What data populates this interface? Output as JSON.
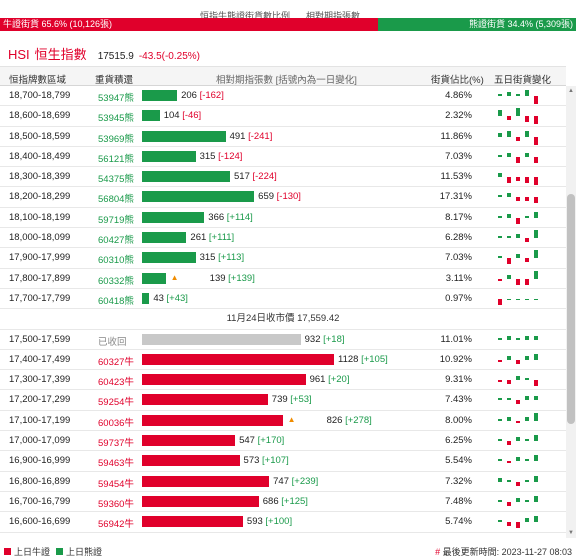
{
  "top_legend": {
    "left_title": "恒指牛熊證街貨數比例",
    "right_title": "相對期指張數"
  },
  "ratio": {
    "bull_label": "牛證街貨 65.6% (10,126張)",
    "bear_label": "熊證街貨 34.4% (5,309張)",
    "bull_fraction": 0.656
  },
  "index": {
    "code": "HSI",
    "name": "恒生指數",
    "price": "17515.9",
    "change": "-43.5(-0.25%)"
  },
  "columns": {
    "range": "恒指牌數區域",
    "count": "重貨積還",
    "bar": "相對期指張數 [括號內為一日變化]",
    "pct": "街貨佔比(%)",
    "five": "五日街貨變化"
  },
  "colors": {
    "bull": "#e0002b",
    "bear": "#1a9a4a",
    "grey": "#c8c8c8"
  },
  "bar_scale_max": 1128,
  "bear_rows": [
    {
      "range": "18,700-18,799",
      "count": "53947熊",
      "value": 206,
      "delta": "[-162]",
      "neg": true,
      "pct": "4.86%",
      "spark": [
        1,
        2,
        1,
        3,
        -4
      ]
    },
    {
      "range": "18,600-18,699",
      "count": "53945熊",
      "value": 104,
      "delta": "[-46]",
      "neg": true,
      "pct": "2.32%",
      "spark": [
        3,
        -2,
        4,
        -3,
        -4
      ]
    },
    {
      "range": "18,500-18,599",
      "count": "53969熊",
      "value": 491,
      "delta": "[-241]",
      "neg": true,
      "pct": "11.86%",
      "spark": [
        2,
        3,
        -2,
        3,
        -4
      ]
    },
    {
      "range": "18,400-18,499",
      "count": "56121熊",
      "value": 315,
      "delta": "[-124]",
      "neg": true,
      "pct": "7.03%",
      "spark": [
        1,
        2,
        -3,
        2,
        -3
      ]
    },
    {
      "range": "18,300-18,399",
      "count": "54375熊",
      "value": 517,
      "delta": "[-224]",
      "neg": true,
      "pct": "11.53%",
      "spark": [
        2,
        -3,
        -2,
        -3,
        -4
      ]
    },
    {
      "range": "18,200-18,299",
      "count": "56804熊",
      "value": 659,
      "delta": "[-130]",
      "neg": true,
      "pct": "17.31%",
      "spark": [
        1,
        2,
        -2,
        -2,
        -3
      ]
    },
    {
      "range": "18,100-18,199",
      "count": "59719熊",
      "value": 366,
      "delta": "[+114]",
      "neg": false,
      "pct": "8.17%",
      "spark": [
        1,
        2,
        -3,
        1,
        3
      ]
    },
    {
      "range": "18,000-18,099",
      "count": "60427熊",
      "value": 261,
      "delta": "[+111]",
      "neg": false,
      "pct": "6.28%",
      "spark": [
        1,
        1,
        2,
        -2,
        4
      ]
    },
    {
      "range": "17,900-17,999",
      "count": "60310熊",
      "value": 315,
      "delta": "[+113]",
      "neg": false,
      "pct": "7.03%",
      "spark": [
        1,
        -3,
        2,
        -2,
        4
      ]
    },
    {
      "range": "17,800-17,899",
      "count": "60332熊",
      "value": 139,
      "delta": "[+139]",
      "neg": false,
      "pct": "3.11%",
      "spark": [
        -1,
        2,
        -3,
        -3,
        4
      ],
      "warn": true
    },
    {
      "range": "17,700-17,799",
      "count": "60418熊",
      "value": 43,
      "delta": "[+43]",
      "neg": false,
      "pct": "0.97%",
      "spark": [
        -3,
        0,
        0,
        0,
        0
      ]
    }
  ],
  "separator": "11月24日收市價 17,559.42",
  "grey_row": {
    "range": "17,500-17,599",
    "count": "已收回",
    "value": 932,
    "delta": "[+18]",
    "neg": false,
    "pct": "11.01%",
    "spark": [
      1,
      2,
      1,
      2,
      2
    ]
  },
  "bull_rows": [
    {
      "range": "17,400-17,499",
      "count": "60327牛",
      "value": 1128,
      "delta": "[+105]",
      "neg": false,
      "pct": "10.92%",
      "spark": [
        -1,
        2,
        -2,
        2,
        3
      ]
    },
    {
      "range": "17,300-17,399",
      "count": "60423牛",
      "value": 961,
      "delta": "[+20]",
      "neg": false,
      "pct": "9.31%",
      "spark": [
        -1,
        -2,
        2,
        1,
        -3
      ]
    },
    {
      "range": "17,200-17,299",
      "count": "59254牛",
      "value": 739,
      "delta": "[+53]",
      "neg": false,
      "pct": "7.43%",
      "spark": [
        1,
        1,
        -2,
        2,
        2
      ]
    },
    {
      "range": "17,100-17,199",
      "count": "60036牛",
      "value": 826,
      "delta": "[+278]",
      "neg": false,
      "pct": "8.00%",
      "spark": [
        1,
        2,
        -1,
        2,
        4
      ],
      "warn": true
    },
    {
      "range": "17,000-17,099",
      "count": "59737牛",
      "value": 547,
      "delta": "[+170]",
      "neg": false,
      "pct": "6.25%",
      "spark": [
        1,
        -2,
        2,
        1,
        3
      ]
    },
    {
      "range": "16,900-16,999",
      "count": "59463牛",
      "value": 573,
      "delta": "[+107]",
      "neg": false,
      "pct": "5.54%",
      "spark": [
        1,
        -1,
        2,
        1,
        3
      ]
    },
    {
      "range": "16,800-16,899",
      "count": "59454牛",
      "value": 747,
      "delta": "[+239]",
      "neg": false,
      "pct": "7.32%",
      "spark": [
        2,
        1,
        -2,
        1,
        3
      ]
    },
    {
      "range": "16,700-16,799",
      "count": "59360牛",
      "value": 686,
      "delta": "[+125]",
      "neg": false,
      "pct": "7.48%",
      "spark": [
        1,
        -2,
        2,
        1,
        3
      ]
    },
    {
      "range": "16,600-16,699",
      "count": "56942牛",
      "value": 593,
      "delta": "[+100]",
      "neg": false,
      "pct": "5.74%",
      "spark": [
        1,
        -2,
        -3,
        2,
        3
      ]
    }
  ],
  "footer": {
    "bull_legend": "上日牛證",
    "bear_legend": "上日熊證",
    "hash": "#",
    "update": "最後更新時間: 2023-11-27 08:03"
  }
}
